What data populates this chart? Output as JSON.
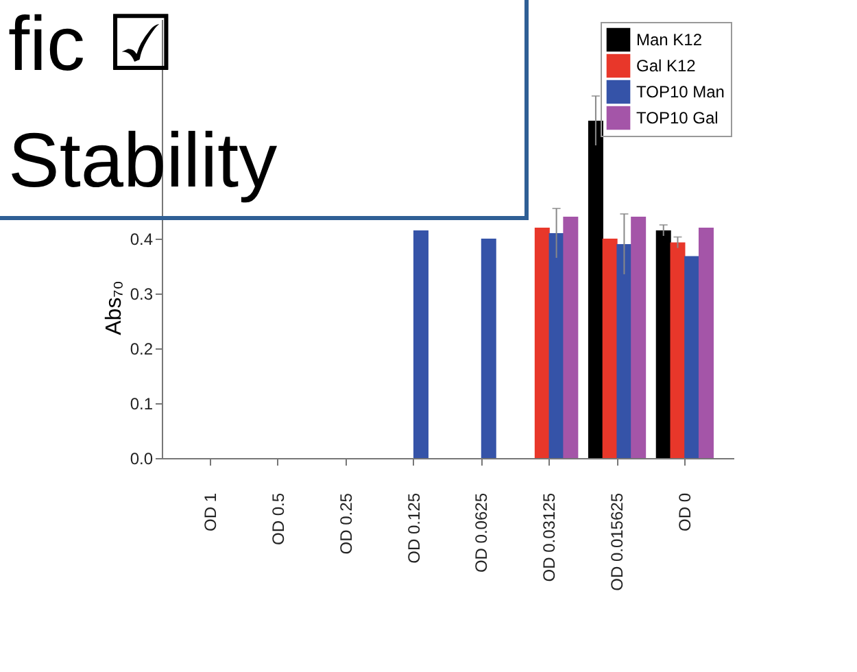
{
  "chart_data": {
    "type": "bar",
    "ylabel": "Abs₇₀",
    "categories": [
      "OD 1",
      "OD 0.5",
      "OD 0.25",
      "OD 0.125",
      "OD 0.0625",
      "OD 0.03125",
      "OD 0.015625",
      "OD 0"
    ],
    "series": [
      {
        "name": "Man K12",
        "color": "#000000",
        "values": [
          null,
          null,
          null,
          null,
          null,
          null,
          0.615,
          0.415
        ],
        "errors": [
          null,
          null,
          null,
          null,
          null,
          null,
          0.045,
          0.01
        ]
      },
      {
        "name": "Gal K12",
        "color": "#e8372a",
        "values": [
          null,
          null,
          null,
          null,
          null,
          0.42,
          0.4,
          0.393
        ],
        "errors": [
          null,
          null,
          null,
          null,
          null,
          null,
          null,
          0.01
        ]
      },
      {
        "name": "TOP10 Man",
        "color": "#3553a8",
        "values": [
          null,
          null,
          null,
          0.415,
          0.4,
          0.41,
          0.39,
          0.368
        ],
        "errors": [
          null,
          null,
          null,
          null,
          null,
          0.045,
          0.055,
          null
        ]
      },
      {
        "name": "TOP10 Gal",
        "color": "#a455a8",
        "values": [
          null,
          null,
          null,
          null,
          null,
          0.44,
          0.44,
          0.42
        ],
        "errors": [
          null,
          null,
          null,
          null,
          null,
          null,
          null,
          null
        ]
      }
    ],
    "ylim": [
      0,
      0.8
    ],
    "yticks": [
      {
        "value": 0,
        "label": "0.0"
      },
      0.1,
      0.2,
      0.3,
      0.4
    ],
    "grid": false,
    "legend": "top right",
    "annotations": [
      "fic ☑",
      "Stability"
    ]
  }
}
